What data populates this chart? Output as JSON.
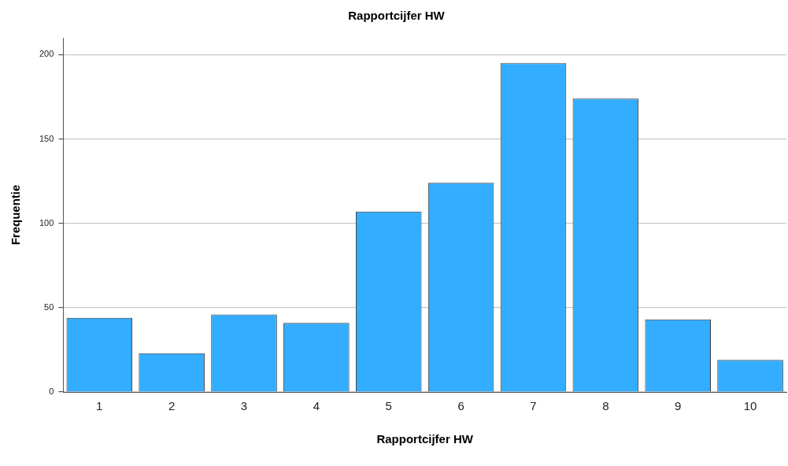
{
  "chart_data": {
    "type": "bar",
    "title": "Rapportcijfer HW",
    "xlabel": "Rapportcijfer HW",
    "ylabel": "Frequentie",
    "categories": [
      "1",
      "2",
      "3",
      "4",
      "5",
      "6",
      "7",
      "8",
      "9",
      "10"
    ],
    "values": [
      44,
      23,
      46,
      41,
      107,
      124,
      195,
      174,
      43,
      19
    ],
    "color": "#33adff",
    "ylim": [
      0,
      210
    ],
    "yticks": [
      0,
      50,
      100,
      150,
      200
    ],
    "grid": "y",
    "legend": false
  }
}
